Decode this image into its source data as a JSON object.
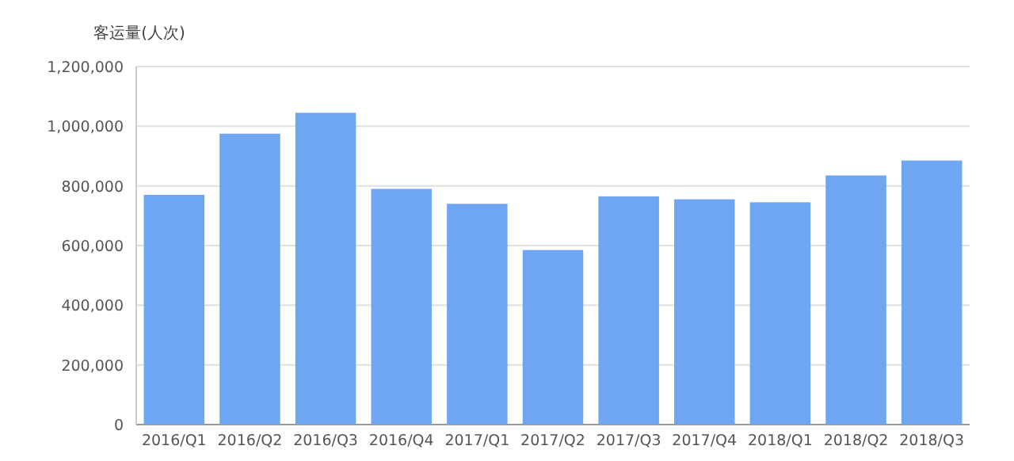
{
  "chart_data": {
    "type": "bar",
    "ylabel": "客运量(人次)",
    "categories": [
      "2016/Q1",
      "2016/Q2",
      "2016/Q3",
      "2016/Q4",
      "2017/Q1",
      "2017/Q2",
      "2017/Q3",
      "2017/Q4",
      "2018/Q1",
      "2018/Q2",
      "2018/Q3"
    ],
    "series": [
      {
        "color": "#6fa6f2",
        "values": [
          770000,
          975000,
          1045000,
          790000,
          740000,
          585000,
          765000,
          755000,
          745000,
          835000,
          885000
        ]
      }
    ],
    "ylim": [
      0,
      1200000
    ],
    "yticks": [
      {
        "value": 0,
        "label": "0"
      },
      {
        "value": 200000,
        "label": "200,000"
      },
      {
        "value": 400000,
        "label": "400,000"
      },
      {
        "value": 600000,
        "label": "600,000"
      },
      {
        "value": 800000,
        "label": "800,000"
      },
      {
        "value": 1000000,
        "label": "1,000,000"
      },
      {
        "value": 1200000,
        "label": "1,200,000"
      }
    ],
    "grid": "y"
  }
}
